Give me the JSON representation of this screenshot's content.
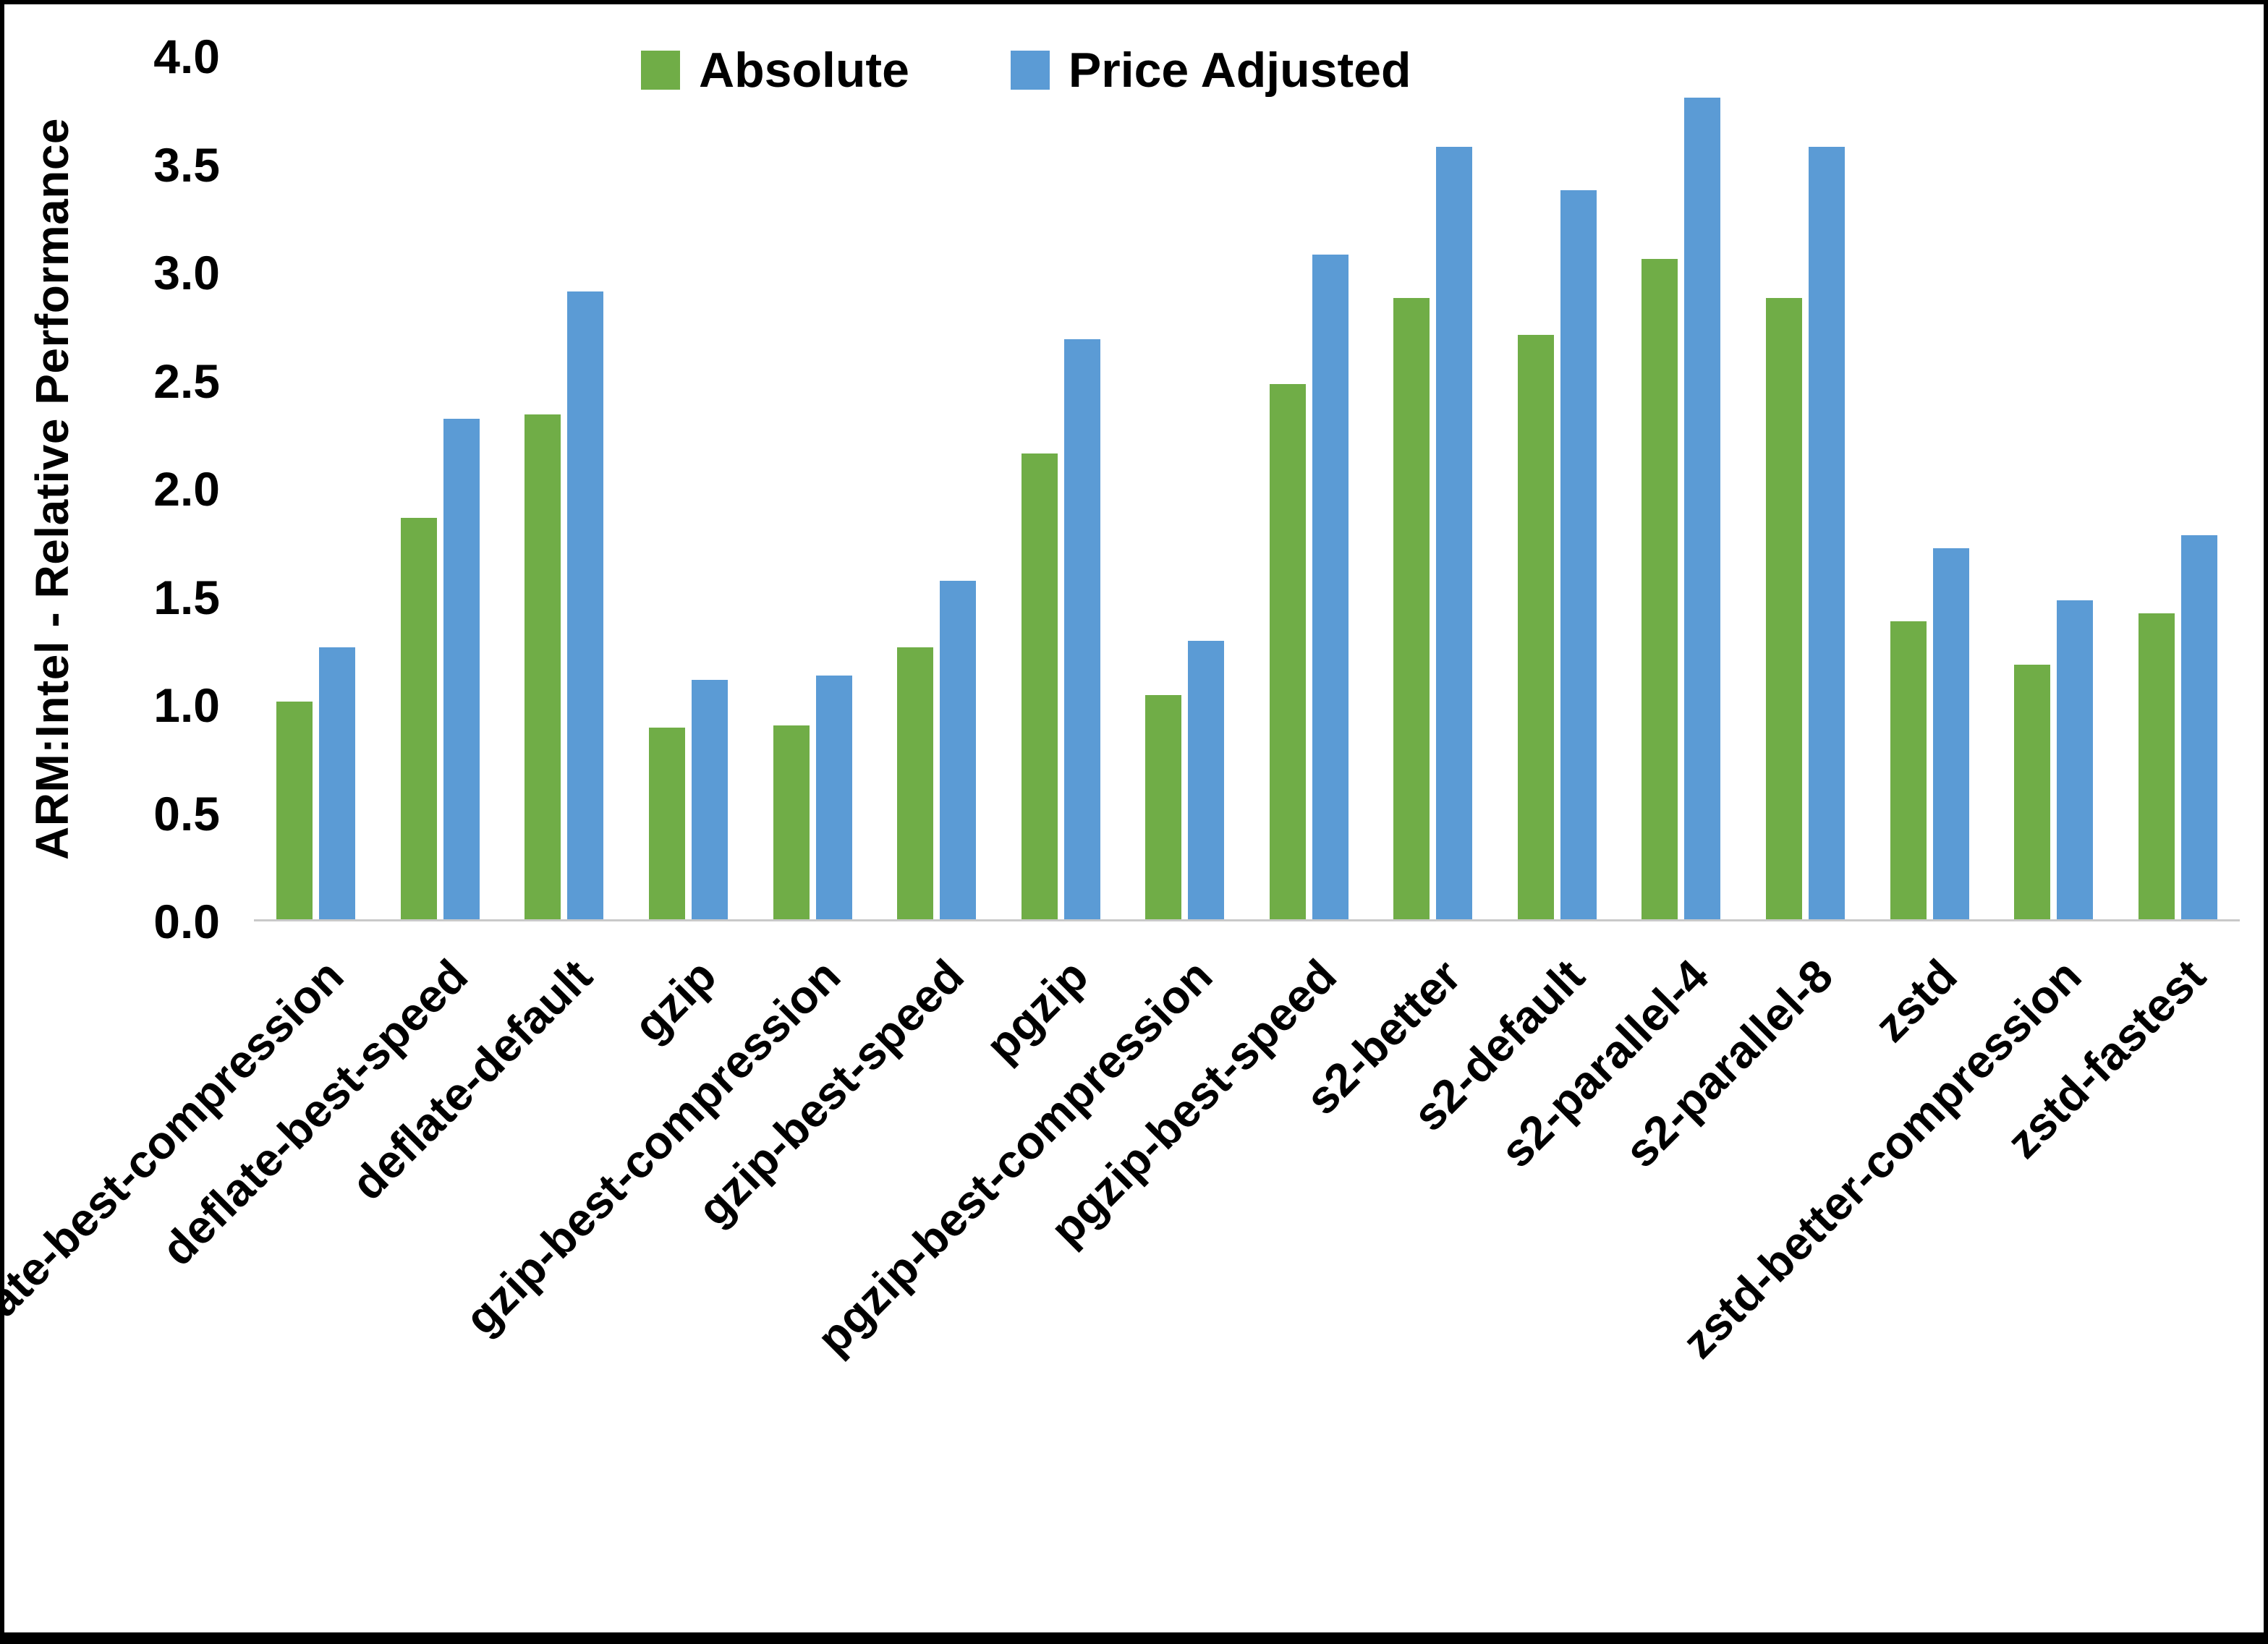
{
  "figure": {
    "background": "#ffffff",
    "border_color": "#000000",
    "axis_line_color": "#c9c9c9"
  },
  "legend": {
    "position": "top-center"
  },
  "chart_data": {
    "type": "bar",
    "title": "",
    "xlabel": "",
    "ylabel": "ARM:Intel - Relative Performance",
    "ylim": [
      0.0,
      4.0
    ],
    "ytick_step": 0.5,
    "grid": false,
    "legend_position": "top-center",
    "categories": [
      "deflate-best-compression",
      "deflate-best-speed",
      "deflate-default",
      "gzip",
      "gzip-best-compression",
      "gzip-best-speed",
      "pgzip",
      "pgzip-best-compression",
      "pgzip-best-speed",
      "s2-better",
      "s2-default",
      "s2-parallel-4",
      "s2-parallel-8",
      "zstd",
      "zstd-better-compression",
      "zstd-fastest"
    ],
    "series": [
      {
        "name": "Absolute",
        "color": "#70AD47",
        "values": [
          1.01,
          1.86,
          2.34,
          0.89,
          0.9,
          1.26,
          2.16,
          1.04,
          2.48,
          2.88,
          2.71,
          3.06,
          2.88,
          1.38,
          1.18,
          1.42
        ]
      },
      {
        "name": "Price Adjusted",
        "color": "#5B9BD5",
        "values": [
          1.26,
          2.32,
          2.91,
          1.11,
          1.13,
          1.57,
          2.69,
          1.29,
          3.08,
          3.58,
          3.38,
          3.81,
          3.58,
          1.72,
          1.48,
          1.78
        ]
      }
    ]
  }
}
